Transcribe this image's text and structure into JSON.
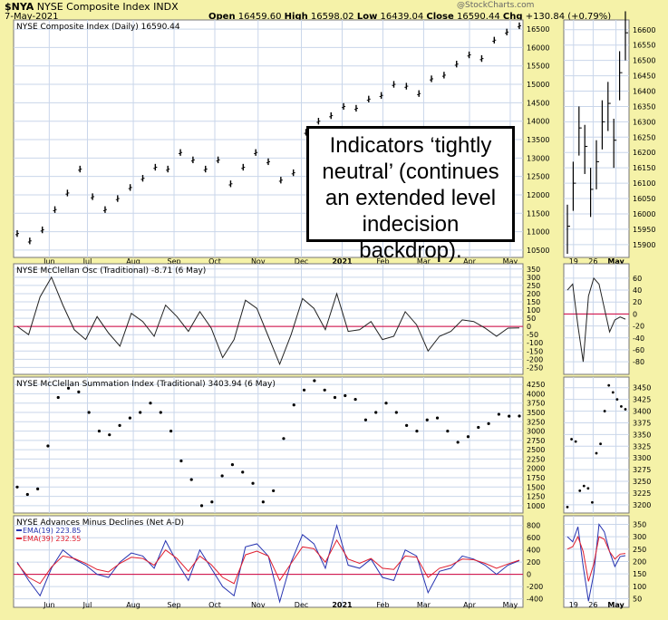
{
  "header": {
    "symbol": "$NYA",
    "name": "NYSE Composite Index",
    "exchange": "INDX",
    "date": "7-May-2021",
    "open_label": "Open",
    "open": "16459.60",
    "high_label": "High",
    "high": "16598.02",
    "low_label": "Low",
    "low": "16439.04",
    "close_label": "Close",
    "close": "16590.44",
    "chg_label": "Chg",
    "chg": "+130.84 (+0.79%)",
    "watermark": "@StockCharts.com"
  },
  "annotation": "Indicators ‘tightly neutral’ (continues an extended level indecision backdrop).",
  "colors": {
    "background": "#f5f2a8",
    "plot_bg": "#ffffff",
    "grid": "#c9d6ea",
    "zero_line": "#d4003c",
    "ema19": "#2633b0",
    "ema39": "#e01e2e"
  },
  "chart_data": [
    {
      "type": "ohlc",
      "title": "NYSE Composite Index (Daily) 16590.44",
      "x_labels": [
        "Jun",
        "Jul",
        "Aug",
        "Sep",
        "Oct",
        "Nov",
        "Dec",
        "2021",
        "Feb",
        "Mar",
        "Apr",
        "May"
      ],
      "ylim": [
        10400,
        16650
      ],
      "yticks": [
        10500,
        11000,
        11500,
        12000,
        12500,
        13000,
        13500,
        14000,
        14500,
        15000,
        15500,
        16000,
        16500
      ],
      "series": [
        {
          "values": [
            10950,
            10750,
            11050,
            11600,
            12050,
            12700,
            11950,
            11600,
            11900,
            12200,
            12450,
            12750,
            12700,
            13150,
            12950,
            12700,
            12950,
            12300,
            12750,
            13150,
            12900,
            12400,
            12600,
            13700,
            14000,
            14150,
            14400,
            14350,
            14600,
            14700,
            15000,
            14950,
            14750,
            15150,
            15250,
            15550,
            15800,
            15700,
            16200,
            16420,
            16590
          ]
        }
      ],
      "zoom": {
        "x_labels": [
          "19",
          "26",
          "May"
        ],
        "yticks": [
          15900,
          15950,
          16000,
          16050,
          16100,
          16150,
          16200,
          16250,
          16300,
          16350,
          16400,
          16450,
          16500,
          16550,
          16600
        ],
        "ylim": [
          15870,
          16620
        ],
        "values": [
          15960,
          16100,
          16280,
          16220,
          16080,
          16170,
          16300,
          16360,
          16240,
          16460,
          16590
        ]
      }
    },
    {
      "type": "line",
      "title": "NYSE McClellan Osc (Traditional) -8.71 (6 May)",
      "ylim": [
        -270,
        360
      ],
      "yticks": [
        350,
        300,
        250,
        200,
        150,
        100,
        50,
        0,
        -50,
        -100,
        -150,
        -200,
        -250
      ],
      "values": [
        0,
        -50,
        180,
        300,
        130,
        -20,
        -80,
        60,
        -40,
        -120,
        80,
        30,
        -60,
        130,
        60,
        -30,
        90,
        -10,
        -190,
        -80,
        160,
        110,
        -60,
        -230,
        -50,
        170,
        110,
        -20,
        200,
        -30,
        -20,
        30,
        -80,
        -60,
        90,
        10,
        -150,
        -60,
        -30,
        40,
        30,
        -10,
        -60,
        -10,
        -8.71
      ],
      "zoom": {
        "x_labels": [
          "19",
          "26",
          "May"
        ],
        "yticks": [
          60,
          40,
          20,
          0,
          -20,
          -40,
          -60,
          -80
        ],
        "ylim": [
          -95,
          78
        ],
        "values": [
          40,
          50,
          -20,
          -80,
          30,
          60,
          50,
          10,
          -30,
          -10,
          -5,
          -8.71
        ]
      }
    },
    {
      "type": "scatter",
      "title": "NYSE McClellan Summation Index (Traditional) 3403.94 (6 May)",
      "ylim": [
        900,
        4350
      ],
      "yticks": [
        4250,
        4000,
        3750,
        3500,
        3250,
        3000,
        2750,
        2500,
        2250,
        2000,
        1750,
        1500,
        1250,
        1000
      ],
      "values": [
        1500,
        1300,
        1450,
        2600,
        3900,
        4150,
        4050,
        3500,
        3000,
        2900,
        3150,
        3350,
        3500,
        3750,
        3500,
        3000,
        2200,
        1700,
        1000,
        1100,
        1800,
        2100,
        1900,
        1600,
        1100,
        1400,
        2800,
        3700,
        4100,
        4350,
        4100,
        3900,
        3950,
        3850,
        3300,
        3500,
        3750,
        3500,
        3150,
        3000,
        3300,
        3350,
        3000,
        2700,
        2850,
        3100,
        3200,
        3450,
        3400,
        3403.94
      ],
      "zoom": {
        "x_labels": [
          "19",
          "26",
          "May"
        ],
        "yticks": [
          3450,
          3425,
          3400,
          3375,
          3350,
          3325,
          3300,
          3275,
          3250,
          3225,
          3200
        ],
        "ylim": [
          3190,
          3465
        ],
        "values": [
          3195,
          3340,
          3335,
          3230,
          3240,
          3235,
          3205,
          3310,
          3330,
          3400,
          3455,
          3440,
          3425,
          3410,
          3403.94
        ]
      }
    },
    {
      "type": "line",
      "title": "NYSE Advances Minus Declines (Net A-D)",
      "legend": [
        "EMA(19) 223.85",
        "EMA(39) 232.55"
      ],
      "ylim": [
        -480,
        900
      ],
      "yticks": [
        800,
        600,
        400,
        200,
        0,
        -200,
        -400
      ],
      "series": [
        {
          "name": "EMA(19) 223.85",
          "values": [
            200,
            -100,
            -350,
            100,
            400,
            250,
            150,
            0,
            -50,
            200,
            350,
            300,
            100,
            550,
            200,
            -100,
            400,
            100,
            -200,
            -350,
            450,
            500,
            300,
            -450,
            200,
            650,
            500,
            100,
            800,
            150,
            100,
            250,
            -50,
            -100,
            400,
            300,
            -300,
            50,
            100,
            300,
            250,
            150,
            0,
            150,
            223.85
          ]
        },
        {
          "name": "EMA(39) 232.55",
          "values": [
            180,
            -50,
            -150,
            120,
            300,
            260,
            180,
            80,
            40,
            180,
            280,
            260,
            150,
            400,
            260,
            50,
            300,
            160,
            -50,
            -150,
            320,
            380,
            300,
            -100,
            180,
            450,
            420,
            200,
            560,
            250,
            180,
            260,
            100,
            80,
            300,
            280,
            -50,
            100,
            150,
            250,
            240,
            180,
            100,
            170,
            232.55
          ]
        }
      ],
      "zoom": {
        "x_labels": [
          "19",
          "26",
          "May"
        ],
        "yticks": [
          350,
          300,
          250,
          200,
          150,
          100,
          50
        ],
        "ylim": [
          30,
          370
        ],
        "series": [
          {
            "name": "EMA(19) 223.85",
            "values": [
              300,
              280,
              340,
              180,
              40,
              150,
              350,
              320,
              240,
              180,
              220,
              223.85
            ]
          },
          {
            "name": "EMA(39) 232.55",
            "values": [
              250,
              260,
              300,
              240,
              120,
              190,
              300,
              290,
              240,
              210,
              230,
              232.55
            ]
          }
        ]
      }
    }
  ]
}
